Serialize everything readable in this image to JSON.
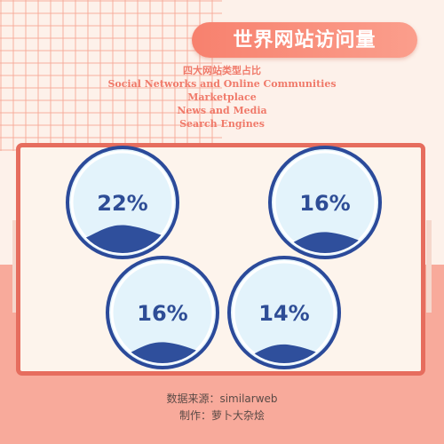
{
  "title": "世界网站访问量",
  "chart_data": {
    "type": "pie",
    "title": "四大网站类型占比",
    "categories": [
      "Social Networks and Online Communities",
      "Marketplace",
      "News and Media",
      "Search Engines"
    ],
    "values": [
      22,
      16,
      16,
      14
    ],
    "labels": [
      "22%",
      "16%",
      "16%",
      "14%"
    ],
    "colors": {
      "accent": "#f07a6a",
      "wave": "#2f4f9c",
      "ring": "#2b4a9a",
      "fill": "#e3f3fb"
    }
  },
  "footer": {
    "source": "数据来源：similarweb",
    "author": "制作：萝卜大杂烩"
  }
}
